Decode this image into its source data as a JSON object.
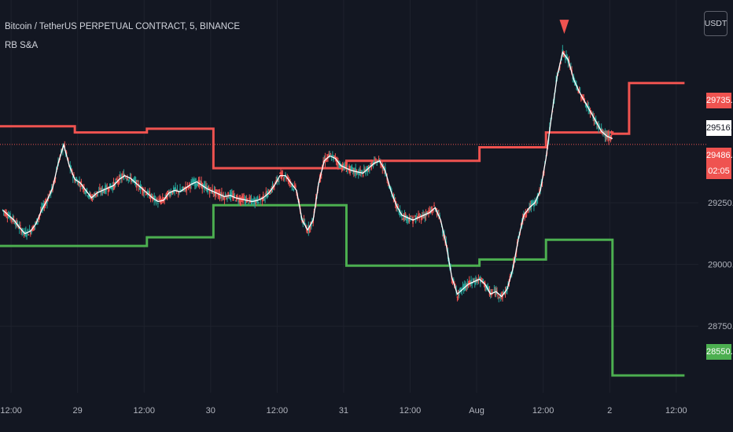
{
  "header": {
    "title": "Bitcoin / TetherUS PERPETUAL CONTRACT, 5, BINANCE",
    "indicator": "RB S&A",
    "currency": "USDT"
  },
  "price_tags": {
    "resistance": "29735.0",
    "last": "29516.1",
    "current": "29486.4",
    "countdown": "02:05",
    "support": "28550.0"
  },
  "colors": {
    "background": "#131722",
    "resistance": "#ef5350",
    "support": "#4caf50",
    "candle_up": "#26a69a",
    "candle_down": "#ef5350",
    "ma": "#ffffff"
  },
  "chart_data": {
    "type": "line",
    "title": "Bitcoin / TetherUS PERPETUAL CONTRACT, 5, BINANCE",
    "x_tick_labels": [
      "12:00",
      "29",
      "12:00",
      "30",
      "12:00",
      "31",
      "12:00",
      "Aug",
      "12:00",
      "2",
      "12:00"
    ],
    "x_ticks_hours": [
      12,
      24,
      36,
      48,
      60,
      72,
      84,
      96,
      108,
      120,
      132
    ],
    "y_tick_labels": [
      "29250.0",
      "29000.0",
      "28750.0"
    ],
    "y_ticks": [
      29250,
      29000,
      28750
    ],
    "ylim": [
      28480,
      30040
    ],
    "xlim_hours": [
      10.0,
      136.0
    ],
    "current_price": 29486.4,
    "series": [
      {
        "role": "resistance",
        "color": "#ef5350",
        "steps": [
          {
            "start": 0,
            "end": 23.5,
            "value": 29560
          },
          {
            "start": 23.5,
            "end": 36.5,
            "value": 29535
          },
          {
            "start": 36.5,
            "end": 48.5,
            "value": 29550
          },
          {
            "start": 48.5,
            "end": 72.5,
            "value": 29390
          },
          {
            "start": 72.5,
            "end": 96.5,
            "value": 29420
          },
          {
            "start": 96.5,
            "end": 108.5,
            "value": 29475
          },
          {
            "start": 108.5,
            "end": 120.5,
            "value": 29535
          },
          {
            "start": 120.5,
            "end": 123.5,
            "value": 29530
          },
          {
            "start": 123.5,
            "end": 133.5,
            "value": 29735
          }
        ]
      },
      {
        "role": "support",
        "color": "#4caf50",
        "steps": [
          {
            "start": 0,
            "end": 23.5,
            "value": 29075
          },
          {
            "start": 23.5,
            "end": 36.5,
            "value": 29075
          },
          {
            "start": 36.5,
            "end": 48.5,
            "value": 29110
          },
          {
            "start": 48.5,
            "end": 72.5,
            "value": 29240
          },
          {
            "start": 72.5,
            "end": 96.5,
            "value": 28995
          },
          {
            "start": 96.5,
            "end": 108.5,
            "value": 29020
          },
          {
            "start": 108.5,
            "end": 120.5,
            "value": 29100
          },
          {
            "start": 120.5,
            "end": 133.5,
            "value": 28550
          }
        ]
      },
      {
        "role": "price",
        "color": "#ffffff",
        "points": [
          [
            10.5,
            29220
          ],
          [
            11.5,
            29200
          ],
          [
            12.5,
            29180
          ],
          [
            13.5,
            29150
          ],
          [
            14.5,
            29125
          ],
          [
            15.5,
            29135
          ],
          [
            16.5,
            29165
          ],
          [
            17.5,
            29220
          ],
          [
            18.5,
            29260
          ],
          [
            19.5,
            29310
          ],
          [
            20.5,
            29410
          ],
          [
            21.5,
            29485
          ],
          [
            22.5,
            29400
          ],
          [
            23.5,
            29345
          ],
          [
            24.5,
            29330
          ],
          [
            25.5,
            29300
          ],
          [
            26.5,
            29270
          ],
          [
            27.5,
            29290
          ],
          [
            28.5,
            29300
          ],
          [
            29.5,
            29310
          ],
          [
            30.5,
            29320
          ],
          [
            31.5,
            29345
          ],
          [
            32.5,
            29360
          ],
          [
            33.5,
            29350
          ],
          [
            34.5,
            29330
          ],
          [
            35.5,
            29310
          ],
          [
            36.5,
            29290
          ],
          [
            37.5,
            29270
          ],
          [
            38.5,
            29255
          ],
          [
            39.5,
            29260
          ],
          [
            40.5,
            29290
          ],
          [
            41.5,
            29300
          ],
          [
            42.5,
            29295
          ],
          [
            43.5,
            29310
          ],
          [
            44.5,
            29325
          ],
          [
            45.5,
            29335
          ],
          [
            46.5,
            29320
          ],
          [
            47.5,
            29305
          ],
          [
            48.5,
            29295
          ],
          [
            49.5,
            29285
          ],
          [
            50.5,
            29275
          ],
          [
            51.5,
            29280
          ],
          [
            52.5,
            29270
          ],
          [
            53.5,
            29265
          ],
          [
            54.5,
            29260
          ],
          [
            55.5,
            29255
          ],
          [
            56.5,
            29260
          ],
          [
            57.5,
            29270
          ],
          [
            58.5,
            29290
          ],
          [
            59.5,
            29320
          ],
          [
            60.5,
            29360
          ],
          [
            61.5,
            29360
          ],
          [
            62.5,
            29330
          ],
          [
            63.5,
            29300
          ],
          [
            64.5,
            29180
          ],
          [
            65.5,
            29140
          ],
          [
            66.5,
            29180
          ],
          [
            67.5,
            29330
          ],
          [
            68.5,
            29420
          ],
          [
            69.5,
            29440
          ],
          [
            70.5,
            29430
          ],
          [
            71.5,
            29400
          ],
          [
            72.5,
            29390
          ],
          [
            73.5,
            29380
          ],
          [
            74.5,
            29375
          ],
          [
            75.5,
            29370
          ],
          [
            76.5,
            29390
          ],
          [
            77.5,
            29410
          ],
          [
            78.5,
            29420
          ],
          [
            79.5,
            29380
          ],
          [
            80.5,
            29300
          ],
          [
            81.5,
            29240
          ],
          [
            82.5,
            29200
          ],
          [
            83.5,
            29190
          ],
          [
            84.5,
            29180
          ],
          [
            85.5,
            29190
          ],
          [
            86.5,
            29200
          ],
          [
            87.5,
            29210
          ],
          [
            88.5,
            29230
          ],
          [
            89.5,
            29180
          ],
          [
            90.5,
            29080
          ],
          [
            91.5,
            28950
          ],
          [
            92.5,
            28880
          ],
          [
            93.5,
            28900
          ],
          [
            94.5,
            28920
          ],
          [
            95.5,
            28930
          ],
          [
            96.5,
            28940
          ],
          [
            97.5,
            28920
          ],
          [
            98.5,
            28880
          ],
          [
            99.5,
            28890
          ],
          [
            100.5,
            28870
          ],
          [
            101.5,
            28900
          ],
          [
            102.5,
            28980
          ],
          [
            103.5,
            29100
          ],
          [
            104.5,
            29200
          ],
          [
            105.5,
            29230
          ],
          [
            106.5,
            29250
          ],
          [
            107.5,
            29300
          ],
          [
            108.5,
            29430
          ],
          [
            109.5,
            29600
          ],
          [
            110.5,
            29760
          ],
          [
            111.5,
            29860
          ],
          [
            112.5,
            29830
          ],
          [
            113.5,
            29750
          ],
          [
            114.5,
            29700
          ],
          [
            115.5,
            29660
          ],
          [
            116.5,
            29620
          ],
          [
            117.5,
            29580
          ],
          [
            118.5,
            29540
          ],
          [
            119.5,
            29520
          ],
          [
            120.5,
            29510
          ]
        ]
      }
    ]
  }
}
